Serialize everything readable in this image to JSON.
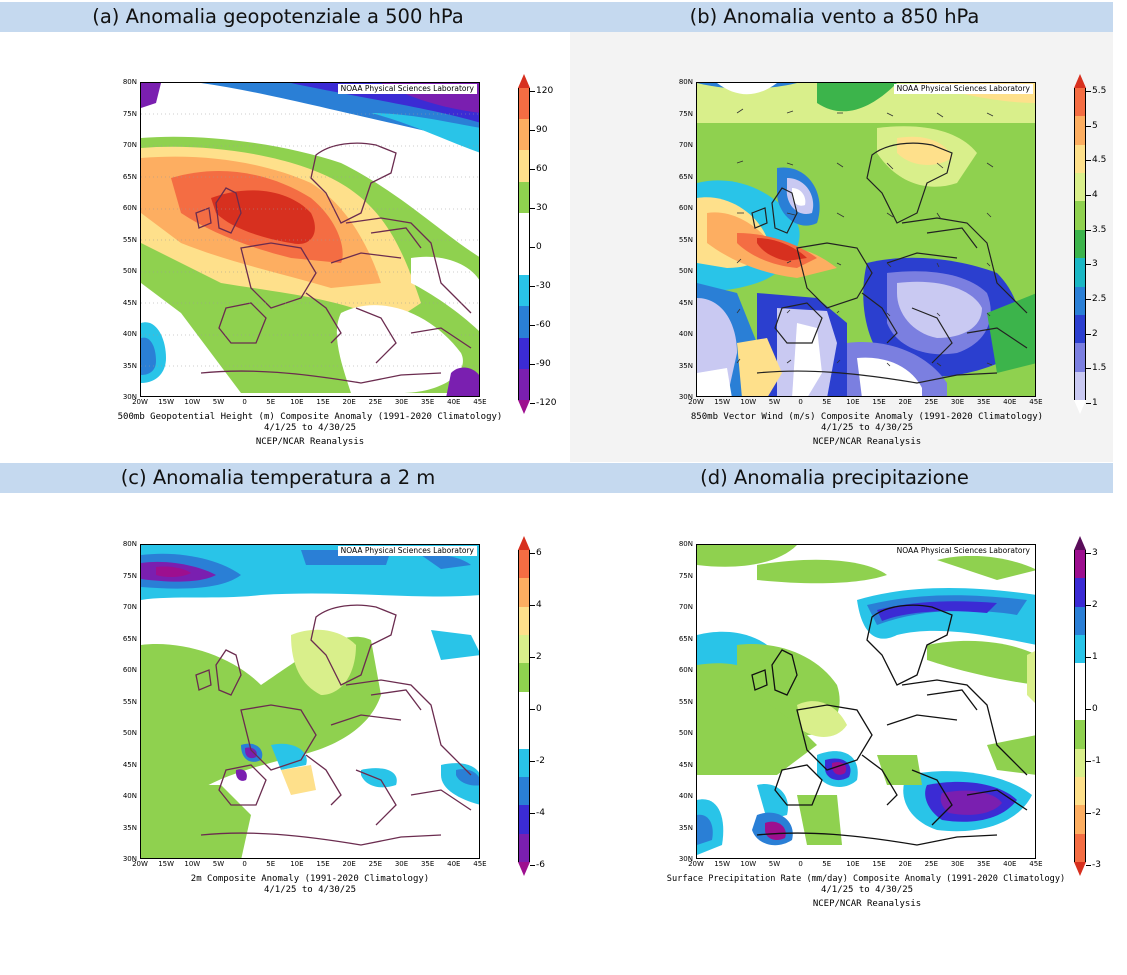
{
  "panels": [
    {
      "title": "(a) Anomalia geopotenziale a 500 hPa",
      "credit": "NOAA Physical Sciences Laboratory",
      "caption": [
        "500mb Geopotential Height (m) Composite Anomaly (1991-2020 Climatology)",
        "4/1/25  to 4/30/25",
        "NCEP/NCAR Reanalysis"
      ],
      "colorbar": {
        "ticks": [
          "120",
          "90",
          "60",
          "30",
          "0",
          "-30",
          "-60",
          "-90",
          "-120"
        ],
        "colors": [
          "#d7301f",
          "#f46d43",
          "#fdae61",
          "#fee08b",
          "#8fd14f",
          "#ffffff",
          "#ffffff",
          "#29c4e8",
          "#2a7fd6",
          "#3b2bd4",
          "#7a1fb0",
          "#9d0f8f"
        ]
      }
    },
    {
      "title": "(b) Anomalia vento a 850 hPa",
      "credit": "NOAA Physical Sciences Laboratory",
      "caption": [
        "850mb Vector Wind (m/s) Composite Anomaly (1991-2020 Climatology)",
        "4/1/25  to 4/30/25",
        "NCEP/NCAR Reanalysis"
      ],
      "colorbar": {
        "ticks": [
          "5.5",
          "5",
          "4.5",
          "4",
          "3.5",
          "3",
          "2.5",
          "2",
          "1.5",
          "1"
        ],
        "colors": [
          "#d7301f",
          "#f46d43",
          "#fdae61",
          "#fee08b",
          "#d9ef8b",
          "#8fd14f",
          "#3cb44b",
          "#1ab7c4",
          "#2a7fd6",
          "#2b3fcf",
          "#7b7fe0",
          "#c9c9f2",
          "#ffffff"
        ]
      }
    },
    {
      "title": "(c) Anomalia temperatura a 2 m",
      "credit": "NOAA Physical Sciences Laboratory",
      "caption": [
        "2m   Composite Anomaly (1991-2020 Climatology)",
        "4/1/25  to 4/30/25"
      ],
      "colorbar": {
        "ticks": [
          "6",
          "4",
          "2",
          "0",
          "-2",
          "-4",
          "-6"
        ],
        "colors": [
          "#d7301f",
          "#f46d43",
          "#fdae61",
          "#fee08b",
          "#d9ef8b",
          "#8fd14f",
          "#ffffff",
          "#ffffff",
          "#29c4e8",
          "#2a7fd6",
          "#3b2bd4",
          "#7a1fb0",
          "#9d0f8f"
        ]
      }
    },
    {
      "title": "(d) Anomalia precipitazione",
      "credit": "NOAA Physical Sciences Laboratory",
      "caption": [
        "Surface Precipitation Rate (mm/day) Composite Anomaly (1991-2020 Climatology)",
        "4/1/25  to 4/30/25",
        "NCEP/NCAR Reanalysis"
      ],
      "colorbar": {
        "ticks": [
          "3",
          "2",
          "1",
          "0",
          "-1",
          "-2",
          "-3"
        ],
        "colors": [
          "#5a0d5a",
          "#9d0f8f",
          "#3b2bd4",
          "#2a7fd6",
          "#29c4e8",
          "#ffffff",
          "#ffffff",
          "#8fd14f",
          "#d9ef8b",
          "#fee08b",
          "#fdae61",
          "#f46d43",
          "#d7301f"
        ]
      }
    }
  ],
  "lat_labels": [
    "80N",
    "75N",
    "70N",
    "65N",
    "60N",
    "55N",
    "50N",
    "45N",
    "40N",
    "35N",
    "30N"
  ],
  "lon_labels": [
    "20W",
    "15W",
    "10W",
    "5W",
    "0",
    "5E",
    "10E",
    "15E",
    "20E",
    "25E",
    "30E",
    "35E",
    "40E",
    "45E"
  ]
}
